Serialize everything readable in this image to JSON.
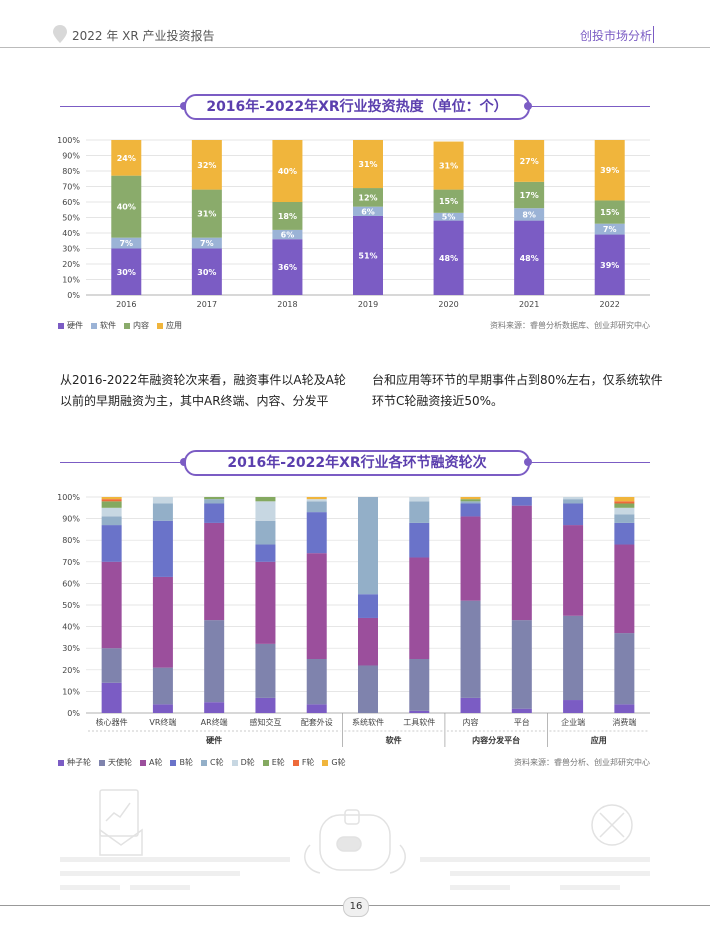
{
  "header": {
    "title": "2022 年 XR 产业投资报告",
    "section": "创投市场分析"
  },
  "chart1": {
    "title": "2016年-2022年XR行业投资热度（单位：个）",
    "source": "资料来源：睿兽分析数据库、创业邦研究中心",
    "legend": [
      "硬件",
      "软件",
      "内容",
      "应用"
    ],
    "colors": [
      "#7b5cc4",
      "#9bb3d6",
      "#8aab6b",
      "#f0b53c"
    ],
    "y_ticks": [
      "0%",
      "10%",
      "20%",
      "30%",
      "40%",
      "50%",
      "60%",
      "70%",
      "80%",
      "90%",
      "100%"
    ]
  },
  "chart_data": [
    {
      "type": "bar",
      "stacked": true,
      "title": "2016年-2022年XR行业投资热度（单位：个）",
      "categories": [
        "2016",
        "2017",
        "2018",
        "2019",
        "2020",
        "2021",
        "2022"
      ],
      "series": [
        {
          "name": "硬件",
          "values": [
            30,
            30,
            36,
            51,
            48,
            48,
            39
          ],
          "labels": [
            "30%",
            "30%",
            "36%",
            "51%",
            "48%",
            "48%",
            "39%"
          ]
        },
        {
          "name": "软件",
          "values": [
            7,
            7,
            6,
            6,
            5,
            8,
            7
          ],
          "labels": [
            "7%",
            "7%",
            "6%",
            "6%",
            "5%",
            "8%",
            "7%"
          ]
        },
        {
          "name": "内容",
          "values": [
            40,
            31,
            18,
            12,
            15,
            17,
            15
          ],
          "labels": [
            "40%",
            "31%",
            "18%",
            "12%",
            "15%",
            "17%",
            "15%"
          ]
        },
        {
          "name": "应用",
          "values": [
            24,
            32,
            40,
            31,
            31,
            27,
            39
          ],
          "labels": [
            "24%",
            "32%",
            "40%",
            "31%",
            "31%",
            "27%",
            "39%"
          ]
        }
      ],
      "ylim": [
        0,
        100
      ]
    },
    {
      "type": "bar",
      "stacked": true,
      "title": "2016年-2022年XR行业各环节融资轮次",
      "categories": [
        "核心器件",
        "VR终端",
        "AR终端",
        "感知交互",
        "配套外设",
        "系统软件",
        "工具软件",
        "内容",
        "平台",
        "企业端",
        "消费端"
      ],
      "groups": [
        {
          "name": "硬件",
          "span": 5
        },
        {
          "name": "软件",
          "span": 2
        },
        {
          "name": "内容分发平台",
          "span": 2
        },
        {
          "name": "应用",
          "span": 2
        }
      ],
      "series": [
        {
          "name": "种子轮",
          "values": [
            14,
            4,
            5,
            7,
            4,
            0,
            1,
            7,
            2,
            6,
            4
          ]
        },
        {
          "name": "天使轮",
          "values": [
            16,
            17,
            38,
            25,
            21,
            22,
            24,
            45,
            41,
            39,
            33
          ]
        },
        {
          "name": "A轮",
          "values": [
            40,
            42,
            45,
            38,
            49,
            22,
            47,
            39,
            53,
            42,
            41
          ]
        },
        {
          "name": "B轮",
          "values": [
            17,
            26,
            9,
            8,
            19,
            11,
            16,
            6,
            4,
            10,
            10
          ]
        },
        {
          "name": "C轮",
          "values": [
            4,
            8,
            2,
            11,
            5,
            45,
            10,
            1,
            0,
            2,
            4
          ]
        },
        {
          "name": "D轮",
          "values": [
            4,
            3,
            0,
            9,
            1,
            0,
            2,
            0,
            0,
            1,
            3
          ]
        },
        {
          "name": "E轮",
          "values": [
            3,
            0,
            1,
            2,
            0,
            0,
            0,
            1,
            0,
            0,
            2
          ]
        },
        {
          "name": "F轮",
          "values": [
            1,
            0,
            0,
            0,
            0,
            0,
            0,
            0,
            0,
            0,
            1
          ]
        },
        {
          "name": "G轮",
          "values": [
            1,
            0,
            0,
            0,
            1,
            0,
            0,
            1,
            0,
            0,
            2
          ]
        }
      ],
      "ylim": [
        0,
        100
      ]
    }
  ],
  "chart2": {
    "title": "2016年-2022年XR行业各环节融资轮次",
    "source": "资料来源：睿兽分析、创业邦研究中心",
    "legend": [
      "种子轮",
      "天使轮",
      "A轮",
      "B轮",
      "C轮",
      "D轮",
      "E轮",
      "F轮",
      "G轮"
    ],
    "colors": [
      "#7b5cc4",
      "#7f83ad",
      "#9b4f9c",
      "#6a73c9",
      "#93afc8",
      "#c7d7e2",
      "#84a960",
      "#ee6a3a",
      "#f0b53c"
    ],
    "y_ticks": [
      "0%",
      "10%",
      "20%",
      "30%",
      "40%",
      "50%",
      "60%",
      "70%",
      "80%",
      "90%",
      "100%"
    ]
  },
  "paragraph": {
    "left": "从2016-2022年融资轮次来看，融资事件以A轮及A轮以前的早期融资为主，其中AR终端、内容、分发平",
    "right": "台和应用等环节的早期事件占到80%左右，仅系统软件环节C轮融资接近50%。"
  },
  "footer": {
    "page": "16"
  }
}
